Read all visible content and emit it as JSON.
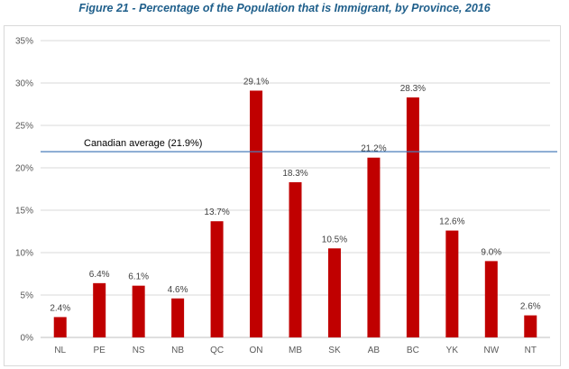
{
  "figure_title": "Figure 21 - Percentage of the Population that is Immigrant, by Province, 2016",
  "colors": {
    "bar": "#c00000",
    "reference_line": "#4a7ebb",
    "grid": "#d9d9d9",
    "title": "#1f5f8b"
  },
  "chart_data": {
    "type": "bar",
    "title": "Figure 21 - Percentage of the Population that is Immigrant, by Province, 2016",
    "xlabel": "",
    "ylabel": "",
    "categories": [
      "NL",
      "PE",
      "NS",
      "NB",
      "QC",
      "ON",
      "MB",
      "SK",
      "AB",
      "BC",
      "YK",
      "NW",
      "NT"
    ],
    "values": [
      2.4,
      6.4,
      6.1,
      4.6,
      13.7,
      29.1,
      18.3,
      10.5,
      21.2,
      28.3,
      12.6,
      9.0,
      2.6
    ],
    "data_labels": [
      "2.4%",
      "6.4%",
      "6.1%",
      "4.6%",
      "13.7%",
      "29.1%",
      "18.3%",
      "10.5%",
      "21.2%",
      "28.3%",
      "12.6%",
      "9.0%",
      "2.6%"
    ],
    "ylim": [
      0,
      35
    ],
    "yticks": [
      0,
      5,
      10,
      15,
      20,
      25,
      30,
      35
    ],
    "ytick_labels": [
      "0%",
      "5%",
      "10%",
      "15%",
      "20%",
      "25%",
      "30%",
      "35%"
    ],
    "grid": true,
    "legend": "none",
    "reference_line": {
      "value": 21.9,
      "label": "Canadian average (21.9%)"
    }
  }
}
